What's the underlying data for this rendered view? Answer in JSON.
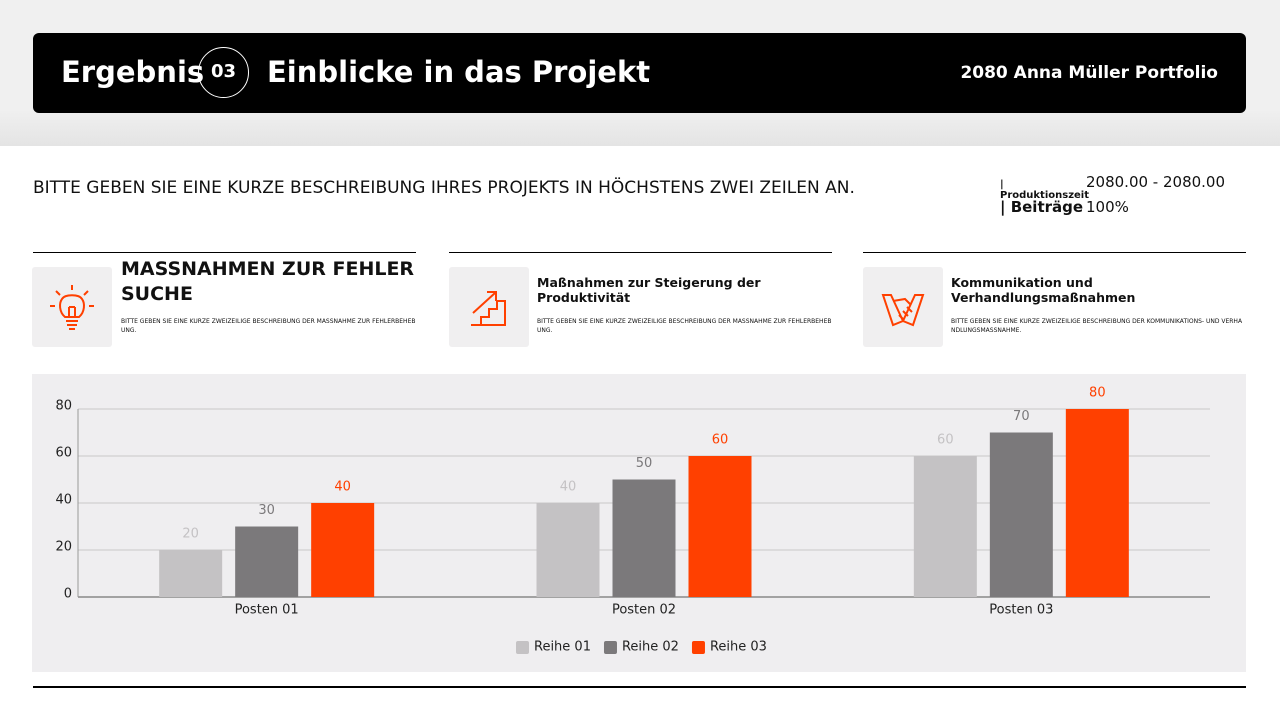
{
  "header": {
    "title": "Ergebnis",
    "number": "03",
    "subtitle": "Einblicke in das Projekt",
    "brand": "2080 Anna Müller Portfolio"
  },
  "description": "BITTE GEBEN SIE EINE KURZE BESCHREIBUNG IHRES PROJEKTS IN HÖCHSTENS ZWEI ZEILEN AN.",
  "meta": [
    {
      "label": "| Produktionszeit",
      "value": "2080.00 - 2080.00"
    },
    {
      "label": "| Beiträge",
      "value": "100%"
    }
  ],
  "cards": [
    {
      "title": "MASSNAHMEN ZUR FEHLERSUCHE",
      "text": "BITTE GEBEN SIE EINE KURZE ZWEIZEILIGE BESCHREIBUNG DER MASSNAHME ZUR FEHLERBEHEBUNG."
    },
    {
      "title": "Maßnahmen zur Steigerung der Produktivität",
      "text": "BITTE GEBEN SIE EINE KURZE ZWEIZEILIGE BESCHREIBUNG DER MASSNAHME ZUR FEHLERBEHEBUNG."
    },
    {
      "title": "Kommunikation und Verhandlungsmaßnahmen",
      "text": "BITTE GEBEN SIE EINE KURZE ZWEIZEILIGE BESCHREIBUNG DER KOMMUNIKATIONS- UND VERHANDLUNGSMASSNAHME."
    }
  ],
  "chart_data": {
    "type": "bar",
    "categories": [
      "Posten 01",
      "Posten 02",
      "Posten 03"
    ],
    "series": [
      {
        "name": "Reihe 01",
        "color": "#c4c2c4",
        "values": [
          20,
          40,
          60
        ]
      },
      {
        "name": "Reihe 02",
        "color": "#7b797b",
        "values": [
          30,
          50,
          70
        ]
      },
      {
        "name": "Reihe 03",
        "color": "#ff4000",
        "values": [
          40,
          60,
          80
        ]
      }
    ],
    "ylim": [
      0,
      80
    ],
    "yticks": [
      0,
      20,
      40,
      60,
      80
    ],
    "grid": true,
    "legend": "bottom"
  }
}
